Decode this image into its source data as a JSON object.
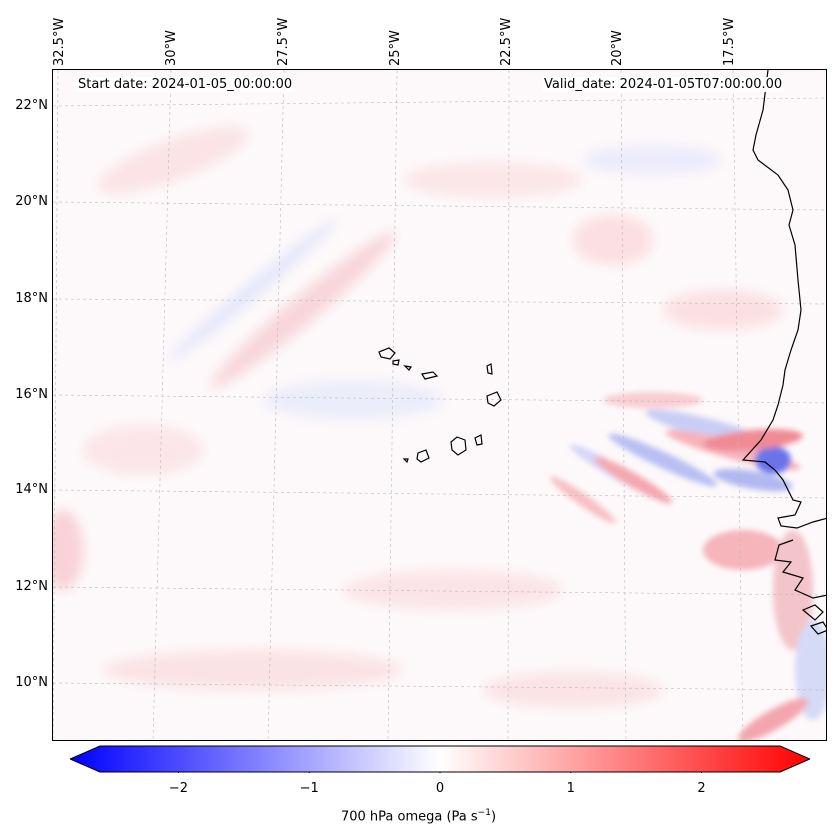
{
  "header": {
    "start_date": "Start date: 2024-01-05_00:00:00",
    "valid_date": "Valid_date: 2024-01-05T07:00:00.00"
  },
  "map": {
    "projection": "geographic",
    "lon_ticks": [
      "32.5°W",
      "30°W",
      "27.5°W",
      "25°W",
      "22.5°W",
      "20°W",
      "17.5°W"
    ],
    "lat_ticks": [
      "22°N",
      "20°N",
      "18°N",
      "16°N",
      "14°N",
      "12°N",
      "10°N"
    ],
    "field": "700 hPa omega",
    "features": [
      "Cape Verde islands",
      "West African coastline (Senegal, Gambia, Guinea-Bissau)"
    ]
  },
  "colorbar": {
    "label_main": "700 hPa omega (Pa s",
    "label_exp": "−1",
    "label_close": ")",
    "ticks": [
      "−2",
      "−1",
      "0",
      "1",
      "2"
    ],
    "tick_values": [
      -2,
      -1,
      0,
      1,
      2
    ],
    "range": [
      -2.6,
      2.6
    ],
    "low_color": "#0000ff",
    "mid_color": "#ffffff",
    "high_color": "#ff0000",
    "extend": "both"
  }
}
